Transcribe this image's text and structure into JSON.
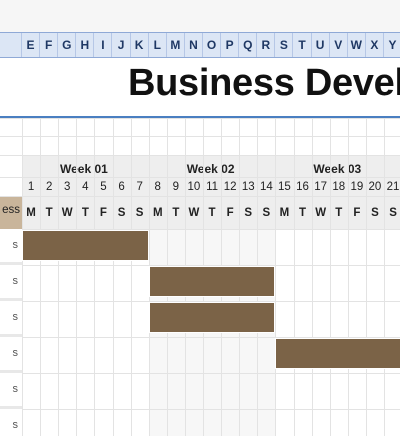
{
  "sheet": {
    "column_letters": [
      "E",
      "F",
      "G",
      "H",
      "I",
      "J",
      "K",
      "L",
      "M",
      "N",
      "O",
      "P",
      "Q",
      "R",
      "S",
      "T",
      "U",
      "V",
      "W",
      "X",
      "Y"
    ]
  },
  "title": "Business Develo",
  "header": {
    "progress_label": "ess",
    "weeks": [
      "Week 01",
      "Week 02",
      "Week 03"
    ],
    "day_numbers": [
      "1",
      "2",
      "3",
      "4",
      "5",
      "6",
      "7",
      "8",
      "9",
      "10",
      "11",
      "12",
      "13",
      "14",
      "15",
      "16",
      "17",
      "18",
      "19",
      "20",
      "21"
    ],
    "day_letters": [
      "M",
      "T",
      "W",
      "T",
      "F",
      "S",
      "S",
      "M",
      "T",
      "W",
      "T",
      "F",
      "S",
      "S",
      "M",
      "T",
      "W",
      "T",
      "F",
      "S",
      "S"
    ]
  },
  "rows": [
    {
      "label": "s",
      "start_day": 1,
      "end_day": 7
    },
    {
      "label": "s",
      "start_day": 8,
      "end_day": 14
    },
    {
      "label": "s",
      "start_day": 8,
      "end_day": 14
    },
    {
      "label": "s",
      "start_day": 15,
      "end_day": 21
    },
    {
      "label": "s"
    },
    {
      "label": "s"
    }
  ],
  "colors": {
    "task_bar": "#7b6347",
    "progress_header": "#c9b59b",
    "column_header": "#dce6f5",
    "title_rule": "#4a7fc1"
  }
}
